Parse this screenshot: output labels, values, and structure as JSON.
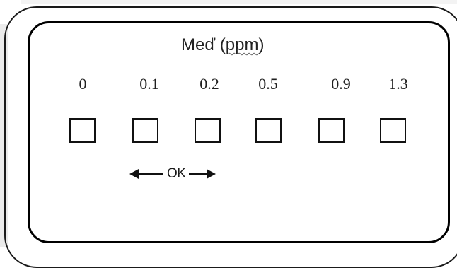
{
  "card": {
    "title": "Meď",
    "title_unit": "ppm"
  },
  "scale": [
    {
      "value": "0"
    },
    {
      "value": "0.1"
    },
    {
      "value": "0.2"
    },
    {
      "value": "0.5"
    },
    {
      "value": "0.9"
    },
    {
      "value": "1.3"
    }
  ],
  "ok_range": {
    "label": "OK",
    "from": "0.1",
    "to": "0.2"
  },
  "colors": {
    "stroke": "#000000",
    "text": "#222222",
    "background": "#ffffff"
  }
}
